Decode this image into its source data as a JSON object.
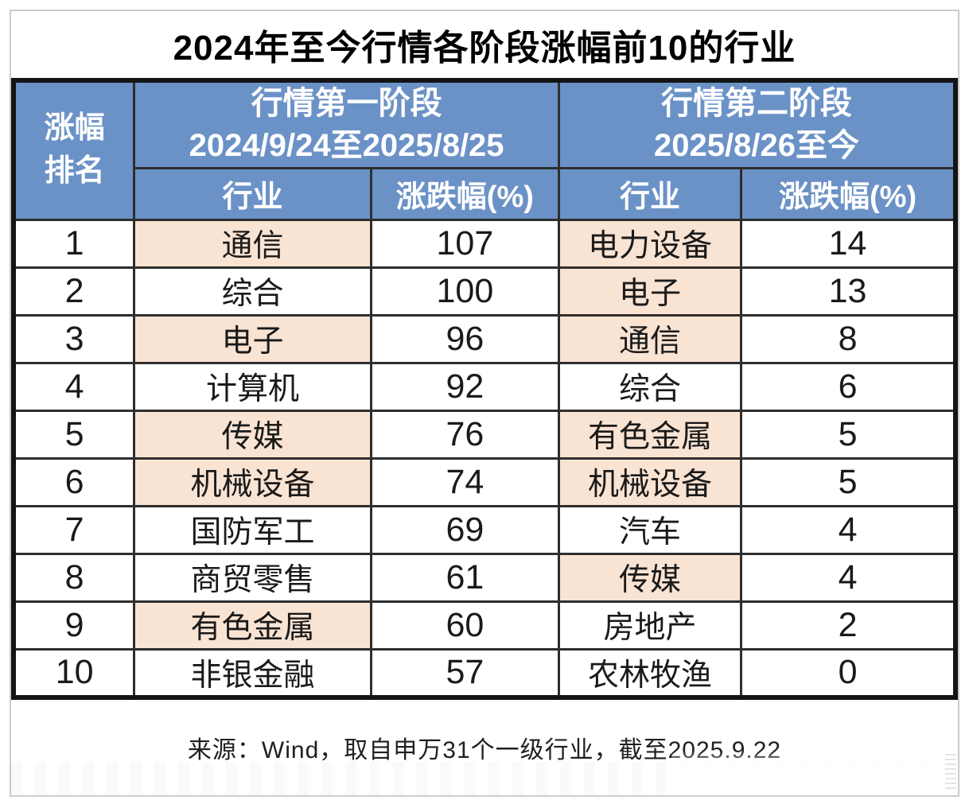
{
  "title": "2024年至今行情各阶段涨幅前10的行业",
  "header": {
    "rank_header": {
      "line1": "涨幅",
      "line2": "排名"
    },
    "stages": [
      {
        "name": "行情第一阶段",
        "period": "2024/9/24至2025/8/25"
      },
      {
        "name": "行情第二阶段",
        "period": "2025/8/26至今"
      }
    ],
    "sub_headers": {
      "industry": "行业",
      "change": "涨跌幅(%)"
    }
  },
  "rows": [
    {
      "rank": "1",
      "s1": {
        "industry": "通信",
        "change": "107",
        "highlight": true
      },
      "s2": {
        "industry": "电力设备",
        "change": "14",
        "highlight": true
      }
    },
    {
      "rank": "2",
      "s1": {
        "industry": "综合",
        "change": "100",
        "highlight": false
      },
      "s2": {
        "industry": "电子",
        "change": "13",
        "highlight": true
      }
    },
    {
      "rank": "3",
      "s1": {
        "industry": "电子",
        "change": "96",
        "highlight": true
      },
      "s2": {
        "industry": "通信",
        "change": "8",
        "highlight": true
      }
    },
    {
      "rank": "4",
      "s1": {
        "industry": "计算机",
        "change": "92",
        "highlight": false
      },
      "s2": {
        "industry": "综合",
        "change": "6",
        "highlight": false
      }
    },
    {
      "rank": "5",
      "s1": {
        "industry": "传媒",
        "change": "76",
        "highlight": true
      },
      "s2": {
        "industry": "有色金属",
        "change": "5",
        "highlight": true
      }
    },
    {
      "rank": "6",
      "s1": {
        "industry": "机械设备",
        "change": "74",
        "highlight": true
      },
      "s2": {
        "industry": "机械设备",
        "change": "5",
        "highlight": true
      }
    },
    {
      "rank": "7",
      "s1": {
        "industry": "国防军工",
        "change": "69",
        "highlight": false
      },
      "s2": {
        "industry": "汽车",
        "change": "4",
        "highlight": false
      }
    },
    {
      "rank": "8",
      "s1": {
        "industry": "商贸零售",
        "change": "61",
        "highlight": false
      },
      "s2": {
        "industry": "传媒",
        "change": "4",
        "highlight": true
      }
    },
    {
      "rank": "9",
      "s1": {
        "industry": "有色金属",
        "change": "60",
        "highlight": true
      },
      "s2": {
        "industry": "房地产",
        "change": "2",
        "highlight": false
      }
    },
    {
      "rank": "10",
      "s1": {
        "industry": "非银金融",
        "change": "57",
        "highlight": false
      },
      "s2": {
        "industry": "农林牧渔",
        "change": "0",
        "highlight": false
      }
    }
  ],
  "footer": {
    "source": "来源：Wind，取自申万31个一级行业，截至2025.9.22"
  },
  "colors": {
    "header_blue": "#6B92C7",
    "highlight_peach": "#F9E3D3",
    "border_dark": "#2e2e2e",
    "outer_border": "#141414"
  },
  "chart_data": {
    "type": "table",
    "title": "2024年至今行情各阶段涨幅前10的行业",
    "columns": [
      "涨幅排名",
      "行业 (行情第一阶段)",
      "涨跌幅(%) (行情第一阶段)",
      "行业 (行情第二阶段)",
      "涨跌幅(%) (行情第二阶段)"
    ],
    "stage1": {
      "name": "行情第一阶段",
      "period": "2024/9/24至2025/8/25",
      "industries": [
        "通信",
        "综合",
        "电子",
        "计算机",
        "传媒",
        "机械设备",
        "国防军工",
        "商贸零售",
        "有色金属",
        "非银金融"
      ],
      "changes_pct": [
        107,
        100,
        96,
        92,
        76,
        74,
        69,
        61,
        60,
        57
      ],
      "highlighted": [
        "通信",
        "电子",
        "传媒",
        "机械设备",
        "有色金属"
      ]
    },
    "stage2": {
      "name": "行情第二阶段",
      "period": "2025/8/26至今",
      "industries": [
        "电力设备",
        "电子",
        "通信",
        "综合",
        "有色金属",
        "机械设备",
        "汽车",
        "传媒",
        "房地产",
        "农林牧渔"
      ],
      "changes_pct": [
        14,
        13,
        8,
        6,
        5,
        5,
        4,
        4,
        2,
        0
      ],
      "highlighted": [
        "电力设备",
        "电子",
        "通信",
        "有色金属",
        "机械设备",
        "传媒"
      ]
    },
    "source": "来源：Wind，取自申万31个一级行业，截至2025.9.22"
  }
}
